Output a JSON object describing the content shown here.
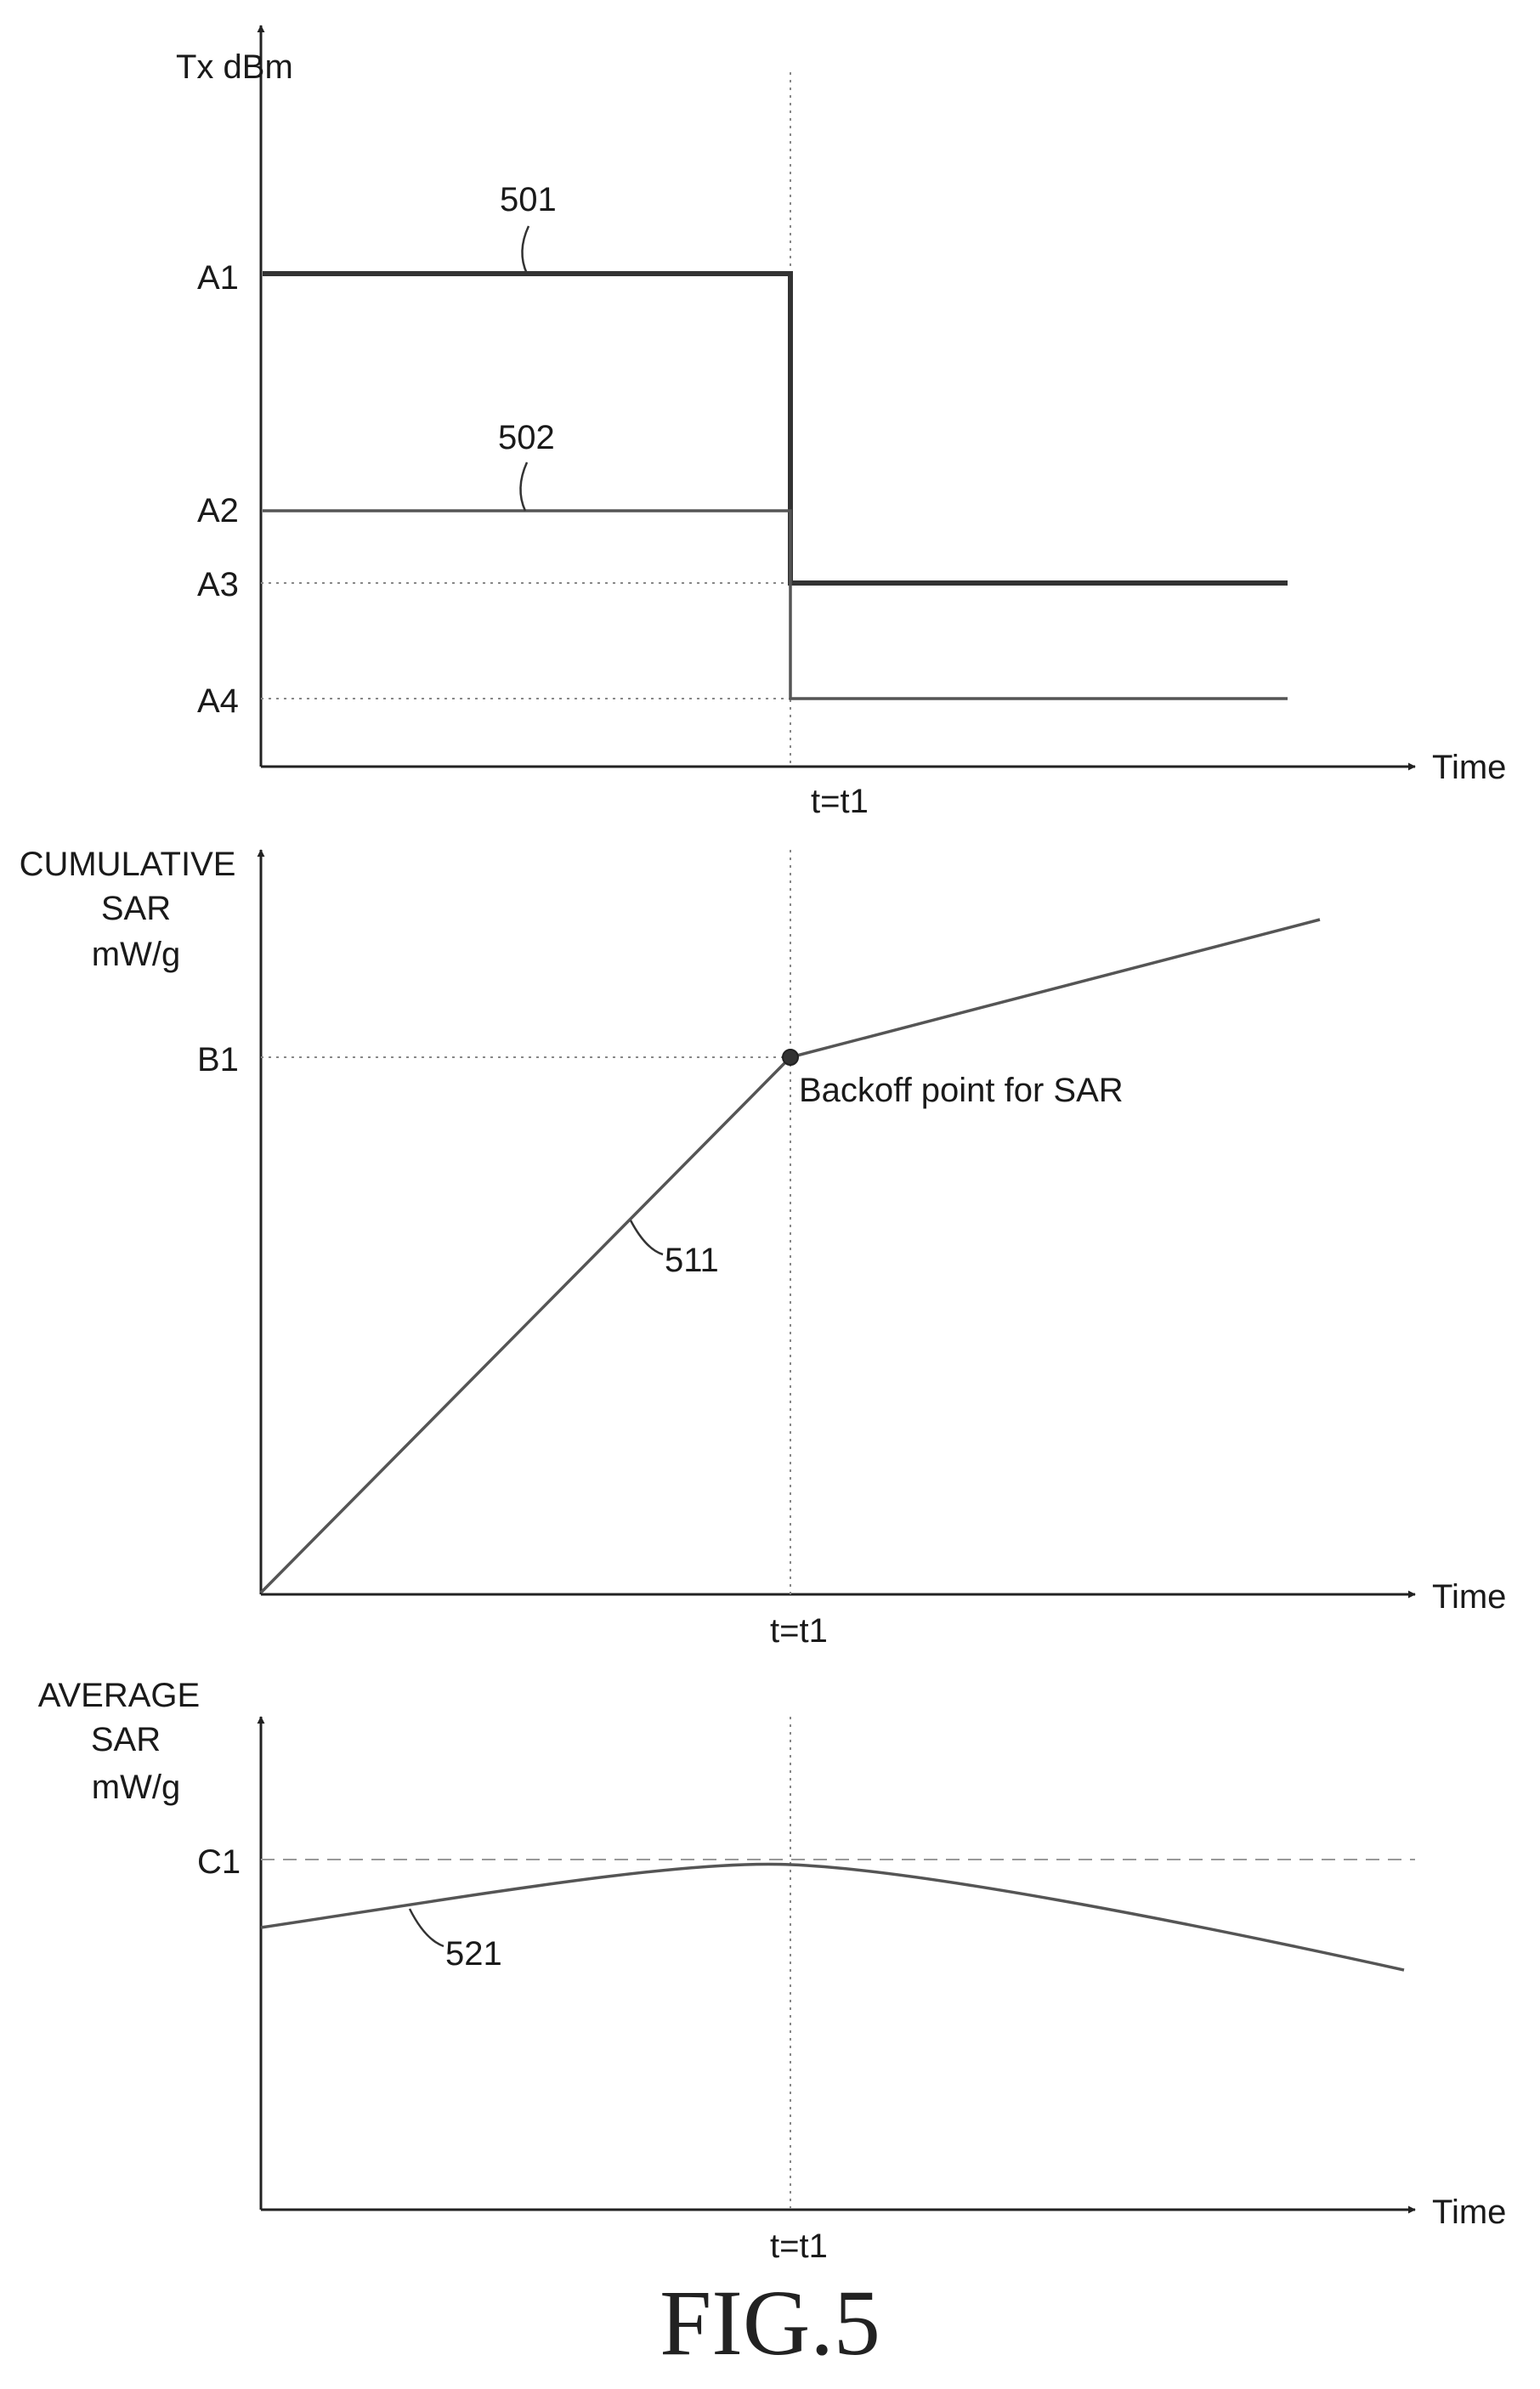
{
  "figure_label": "FIG.5",
  "chart_data": [
    {
      "type": "line",
      "ylabel": "Tx dBm",
      "xlabel": "Time",
      "y_levels": [
        "A1",
        "A2",
        "A3",
        "A4"
      ],
      "marker_label": "t=t1",
      "series": [
        {
          "name": "501",
          "points": [
            [
              "0",
              "A1"
            ],
            [
              "t1",
              "A1"
            ],
            [
              "t1",
              "A3"
            ],
            [
              "end",
              "A3"
            ]
          ]
        },
        {
          "name": "502",
          "points": [
            [
              "0",
              "A2"
            ],
            [
              "t1",
              "A2"
            ],
            [
              "t1",
              "A4"
            ],
            [
              "end",
              "A4"
            ]
          ]
        }
      ]
    },
    {
      "type": "line",
      "ylabel_lines": [
        "CUMULATIVE",
        "SAR",
        "mW/g"
      ],
      "xlabel": "Time",
      "y_levels": [
        "B1"
      ],
      "marker_label": "t=t1",
      "annotation": "Backoff point for SAR",
      "series": [
        {
          "name": "511",
          "points": [
            [
              "0",
              "0"
            ],
            [
              "t1",
              "B1"
            ],
            [
              "end",
              "above B1"
            ]
          ]
        }
      ]
    },
    {
      "type": "line",
      "ylabel_lines": [
        "AVERAGE",
        "SAR",
        "mW/g"
      ],
      "xlabel": "Time",
      "y_levels": [
        "C1"
      ],
      "marker_label": "t=t1",
      "series": [
        {
          "name": "521",
          "shape": "rises toward C1, peaks at t1, then falls"
        }
      ]
    }
  ]
}
